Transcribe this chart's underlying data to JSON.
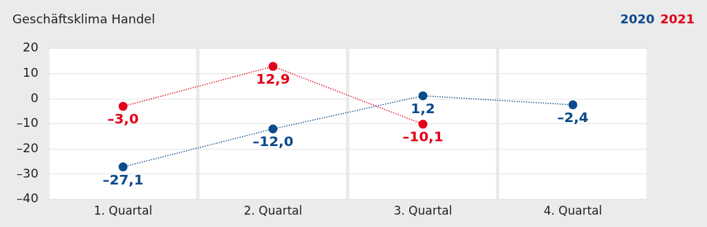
{
  "chart_data": {
    "type": "line",
    "title": "Geschäftsklima Handel",
    "categories": [
      "1. Quartal",
      "2. Quartal",
      "3. Quartal",
      "4. Quartal"
    ],
    "series": [
      {
        "name": "2020",
        "color": "#0b4a8b",
        "values": [
          -27.1,
          -12.0,
          1.2,
          -2.4
        ],
        "value_labels": [
          "–27,1",
          "–12,0",
          "1,2",
          "–2,4"
        ]
      },
      {
        "name": "2021",
        "color": "#e2001a",
        "values": [
          -3.0,
          12.9,
          -10.1,
          null
        ],
        "value_labels": [
          "–3,0",
          "12,9",
          "–10,1",
          null
        ]
      }
    ],
    "ylim": [
      -40,
      20
    ],
    "yticks": [
      {
        "value": -40,
        "label": "–40"
      },
      {
        "value": -30,
        "label": "–30"
      },
      {
        "value": -20,
        "label": "–20"
      },
      {
        "value": -10,
        "label": "–10"
      },
      0,
      10,
      20
    ],
    "grid": true,
    "legend": "top right",
    "marker": "circle",
    "line_style": "dotted"
  }
}
